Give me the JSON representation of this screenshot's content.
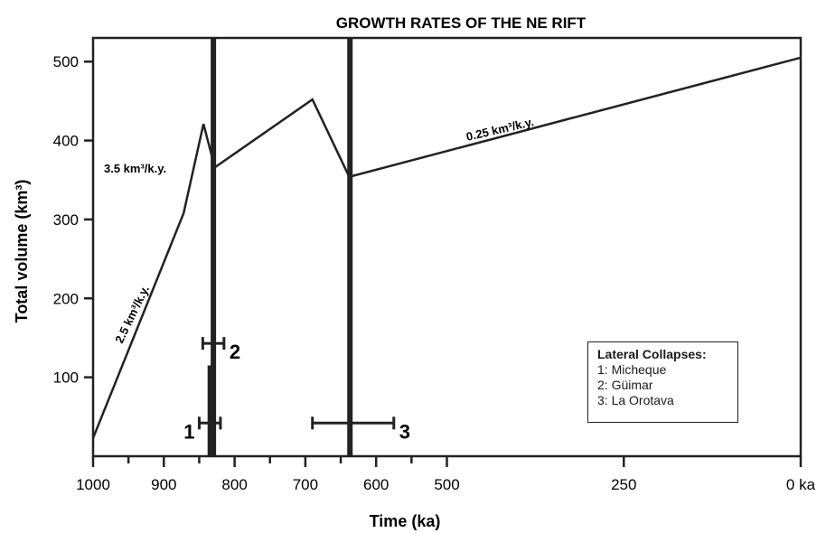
{
  "chart_data": {
    "type": "line",
    "title": "GROWTH RATES OF THE NE RIFT",
    "xlabel": "Time (ka)",
    "ylabel": "Total volume (km³)",
    "xlim": [
      1000,
      0
    ],
    "ylim": [
      0,
      530
    ],
    "x_axis_reversed": true,
    "x_ticks": [
      {
        "value": 1000,
        "label": "1000"
      },
      {
        "value": 900,
        "label": "900"
      },
      {
        "value": 800,
        "label": "800"
      },
      {
        "value": 700,
        "label": "700"
      },
      {
        "value": 600,
        "label": "600"
      },
      {
        "value": 500,
        "label": "500"
      },
      {
        "value": 250,
        "label": "250"
      },
      {
        "value": 0,
        "label": "0 ka"
      }
    ],
    "x_minor_ticks": [
      950,
      850,
      750,
      650,
      550
    ],
    "y_ticks": [
      {
        "value": 100,
        "label": "100"
      },
      {
        "value": 200,
        "label": "200"
      },
      {
        "value": 300,
        "label": "300"
      },
      {
        "value": 400,
        "label": "400"
      },
      {
        "value": 500,
        "label": "500"
      }
    ],
    "series": [
      {
        "x": [
          1000,
          872,
          844,
          828,
          690,
          638,
          0
        ],
        "y": [
          23,
          308,
          421,
          366,
          452,
          354,
          505
        ]
      }
    ],
    "vertical_lines": [
      {
        "x": 830,
        "y_from": 0,
        "y_to": 530
      },
      {
        "x": 637,
        "y_from": 0,
        "y_to": 530
      },
      {
        "x": 835,
        "y_from": 0,
        "y_to": 115
      }
    ],
    "annotations": [
      {
        "text": "2.5 km³/k.y."
      },
      {
        "text": "3.5 km³/k.y."
      },
      {
        "text": "0.25 km³/k.y."
      }
    ],
    "collapse_markers": [
      {
        "label": "1",
        "x_min": 850,
        "x_max": 820,
        "y": 42
      },
      {
        "label": "2",
        "x_min": 845,
        "x_max": 815,
        "y": 143
      },
      {
        "label": "3",
        "x_min": 690,
        "x_max": 575,
        "y": 42
      }
    ],
    "legend": {
      "title": "Lateral Collapses:",
      "items": [
        "1: Micheque",
        "2: Güimar",
        "3: La Orotava"
      ],
      "placement": "bottom-right"
    }
  },
  "colors": {
    "line": "#222222",
    "background": "#ffffff"
  }
}
